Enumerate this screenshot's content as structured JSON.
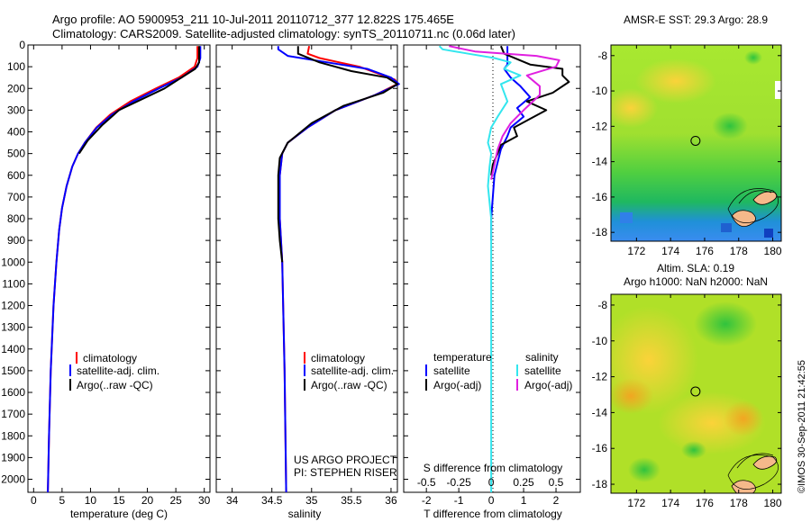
{
  "header": {
    "line1": "Argo profile: AO 5900953_211 10-Jul-2011 20110712_377 12.822S 175.465E",
    "line2": "Climatology: CARS2009. Satellite-adjusted climatology: synTS_20110711.nc (0.06d later)"
  },
  "colors": {
    "climatology": "#ff0000",
    "satellite": "#0000ff",
    "argo": "#000000",
    "salinity_satellite": "#33e6ee",
    "salinity_argo": "#e020e0",
    "land": "#f5b98a"
  },
  "chart_data": [
    {
      "type": "line",
      "xlabel": "temperature (deg C)",
      "xlim": [
        -1,
        31
      ],
      "ylim": [
        2060,
        0
      ],
      "xticks": [
        0,
        5,
        10,
        15,
        20,
        25,
        30
      ],
      "yticks": [
        0,
        100,
        200,
        300,
        400,
        500,
        600,
        700,
        800,
        900,
        1000,
        1100,
        1200,
        1300,
        1400,
        1500,
        1600,
        1700,
        1800,
        1900,
        2000
      ],
      "legend": [
        "climatology",
        "satellite-adj. clim.",
        "Argo(..raw -QC)"
      ],
      "series": [
        {
          "name": "climatology",
          "color": "#ff0000",
          "points": [
            [
              28.8,
              5
            ],
            [
              28.8,
              60
            ],
            [
              28.3,
              100
            ],
            [
              25.5,
              150
            ],
            [
              21.5,
              200
            ],
            [
              17,
              260
            ],
            [
              13.5,
              320
            ],
            [
              11,
              380
            ],
            [
              9,
              450
            ],
            [
              7.8,
              500
            ],
            [
              6.8,
              560
            ],
            [
              5.8,
              650
            ],
            [
              5,
              750
            ],
            [
              4.5,
              850
            ],
            [
              4,
              1000
            ],
            [
              3.5,
              1200
            ],
            [
              3,
              1500
            ],
            [
              2.7,
              1800
            ],
            [
              2.5,
              2060
            ]
          ]
        },
        {
          "name": "satellite-adj. clim.",
          "color": "#0000ff",
          "points": [
            [
              29.3,
              5
            ],
            [
              29.3,
              60
            ],
            [
              28.8,
              100
            ],
            [
              26,
              150
            ],
            [
              22,
              200
            ],
            [
              17.5,
              260
            ],
            [
              13.8,
              320
            ],
            [
              11.1,
              380
            ],
            [
              9,
              450
            ],
            [
              7.8,
              500
            ],
            [
              6.8,
              560
            ],
            [
              5.8,
              650
            ],
            [
              5,
              750
            ],
            [
              4.5,
              850
            ],
            [
              4,
              1000
            ],
            [
              3.5,
              1200
            ],
            [
              3,
              1500
            ],
            [
              2.7,
              1800
            ],
            [
              2.5,
              2060
            ]
          ]
        },
        {
          "name": "Argo(..raw -QC)",
          "color": "#000000",
          "points": [
            [
              29.1,
              5
            ],
            [
              29.1,
              80
            ],
            [
              28.4,
              110
            ],
            [
              26,
              150
            ],
            [
              23,
              200
            ],
            [
              19,
              250
            ],
            [
              15,
              300
            ],
            [
              12,
              370
            ],
            [
              9.5,
              440
            ],
            [
              8,
              500
            ]
          ]
        }
      ]
    },
    {
      "type": "line",
      "xlabel": "salinity",
      "xlim": [
        33.8,
        36.08
      ],
      "ylim": [
        2060,
        0
      ],
      "xticks": [
        34,
        34.5,
        35,
        35.5,
        36
      ],
      "legend": [
        "climatology",
        "satellite-adj. clim.",
        "Argo(..raw -QC)"
      ],
      "annotation": [
        "US ARGO PROJECT",
        "PI: STEPHEN RISER"
      ],
      "series": [
        {
          "name": "climatology",
          "color": "#ff0000",
          "points": [
            [
              34.97,
              5
            ],
            [
              34.95,
              40
            ],
            [
              35.1,
              60
            ],
            [
              35.6,
              100
            ],
            [
              36.05,
              160
            ],
            [
              36.08,
              180
            ],
            [
              35.8,
              230
            ],
            [
              35.3,
              300
            ],
            [
              34.95,
              380
            ],
            [
              34.7,
              450
            ],
            [
              34.63,
              500
            ],
            [
              34.6,
              600
            ],
            [
              34.6,
              800
            ],
            [
              34.63,
              1000
            ],
            [
              34.66,
              1500
            ],
            [
              34.68,
              2060
            ]
          ]
        },
        {
          "name": "satellite-adj. clim.",
          "color": "#0000ff",
          "points": [
            [
              34.58,
              5
            ],
            [
              34.58,
              20
            ],
            [
              34.7,
              50
            ],
            [
              35.2,
              80
            ],
            [
              35.7,
              110
            ],
            [
              36,
              150
            ],
            [
              36.1,
              180
            ],
            [
              35.8,
              230
            ],
            [
              35.3,
              300
            ],
            [
              34.95,
              380
            ],
            [
              34.7,
              450
            ],
            [
              34.63,
              500
            ],
            [
              34.6,
              600
            ],
            [
              34.6,
              800
            ],
            [
              34.63,
              1000
            ],
            [
              34.66,
              1500
            ],
            [
              34.68,
              2060
            ]
          ]
        },
        {
          "name": "Argo(..raw -QC)",
          "color": "#000000",
          "points": [
            [
              34.83,
              5
            ],
            [
              34.83,
              40
            ],
            [
              35.1,
              80
            ],
            [
              35.5,
              120
            ],
            [
              35.95,
              150
            ],
            [
              36.08,
              180
            ],
            [
              35.9,
              220
            ],
            [
              35.4,
              280
            ],
            [
              35,
              360
            ],
            [
              34.7,
              450
            ],
            [
              34.6,
              520
            ],
            [
              34.58,
              600
            ],
            [
              34.58,
              800
            ],
            [
              34.6,
              900
            ],
            [
              34.63,
              1000
            ]
          ]
        }
      ]
    },
    {
      "type": "line",
      "xlabel": "T difference from climatology",
      "x2label": "S difference from climatology",
      "xlim": [
        -2.7,
        2.75
      ],
      "ylim": [
        2060,
        0
      ],
      "xticks": [
        -2,
        -1,
        0,
        1,
        2
      ],
      "x2ticks": [
        -0.5,
        -0.25,
        0,
        0.25,
        0.5
      ],
      "x2tick_labels": [
        "-0.5",
        "-0.25",
        "0",
        "0.25",
        "0.5"
      ],
      "legend_titles": [
        "temperature",
        "salinity"
      ],
      "legend": [
        "satellite",
        "Argo(-adj)",
        "satellite",
        "Argo(-adj)"
      ],
      "series": [
        {
          "name": "satellite",
          "group": "temperature",
          "color": "#0000ff",
          "points": [
            [
              0.5,
              5
            ],
            [
              0.5,
              50
            ],
            [
              0.5,
              90
            ],
            [
              0.4,
              110
            ],
            [
              0.6,
              150
            ],
            [
              0.9,
              190
            ],
            [
              1.2,
              240
            ],
            [
              0.8,
              290
            ],
            [
              1,
              330
            ],
            [
              0.6,
              380
            ],
            [
              0.5,
              420
            ],
            [
              0.3,
              480
            ],
            [
              0.2,
              540
            ],
            [
              0.1,
              600
            ],
            [
              0.05,
              700
            ],
            [
              0,
              800
            ],
            [
              0,
              900
            ]
          ]
        },
        {
          "name": "Argo(-adj)",
          "group": "temperature",
          "color": "#000000",
          "points": [
            [
              0.3,
              5
            ],
            [
              0.4,
              40
            ],
            [
              1.2,
              90
            ],
            [
              2.2,
              110
            ],
            [
              2.2,
              140
            ],
            [
              2.4,
              170
            ],
            [
              1.9,
              220
            ],
            [
              1.1,
              260
            ],
            [
              1.7,
              300
            ],
            [
              1.2,
              340
            ],
            [
              0.7,
              380
            ],
            [
              0.8,
              420
            ],
            [
              0.3,
              460
            ],
            [
              0.2,
              500
            ],
            [
              0.05,
              550
            ],
            [
              0,
              600
            ]
          ]
        },
        {
          "name": "satellite",
          "group": "salinity",
          "color": "#33e6ee",
          "points": [
            [
              -1.6,
              5
            ],
            [
              -1.5,
              20
            ],
            [
              -0.7,
              40
            ],
            [
              0.1,
              60
            ],
            [
              0.6,
              80
            ],
            [
              0.4,
              110
            ],
            [
              0.9,
              140
            ],
            [
              0.3,
              180
            ],
            [
              0.5,
              260
            ],
            [
              0.2,
              330
            ],
            [
              0,
              380
            ],
            [
              -0.1,
              450
            ],
            [
              0,
              500
            ],
            [
              -0.05,
              560
            ],
            [
              -0.1,
              650
            ],
            [
              0,
              800
            ],
            [
              0,
              1000
            ],
            [
              0,
              1200
            ],
            [
              0,
              1500
            ],
            [
              0,
              2060
            ]
          ]
        },
        {
          "name": "Argo(-adj)",
          "group": "salinity",
          "color": "#e020e0",
          "points": [
            [
              -1.3,
              5
            ],
            [
              -0.5,
              30
            ],
            [
              1.4,
              50
            ],
            [
              2.1,
              70
            ],
            [
              2,
              100
            ],
            [
              1.1,
              140
            ],
            [
              1.5,
              190
            ],
            [
              1.5,
              230
            ],
            [
              1,
              300
            ],
            [
              0.6,
              360
            ],
            [
              0.35,
              420
            ],
            [
              0.2,
              480
            ],
            [
              0.1,
              550
            ],
            [
              0,
              620
            ]
          ]
        }
      ]
    },
    {
      "type": "heatmap",
      "title": "AMSR-E SST: 29.3 Argo: 28.9",
      "xlim": [
        170.5,
        180.5
      ],
      "ylim": [
        -18.5,
        -7.4
      ],
      "xticks": [
        172,
        174,
        176,
        178,
        180
      ],
      "yticks": [
        -8,
        -10,
        -12,
        -14,
        -16,
        -18
      ],
      "marker": {
        "lon": 175.465,
        "lat": -12.822
      }
    },
    {
      "type": "heatmap",
      "title": [
        "Altim. SLA: 0.19",
        "Argo h1000: NaN h2000: NaN"
      ],
      "xlim": [
        170.5,
        180.5
      ],
      "ylim": [
        -18.5,
        -7.4
      ],
      "xticks": [
        172,
        174,
        176,
        178,
        180
      ],
      "yticks": [
        -8,
        -10,
        -12,
        -14,
        -16,
        -18
      ],
      "marker": {
        "lon": 175.465,
        "lat": -12.822
      }
    }
  ],
  "timestamp": "©IMOS 30-Sep-2011 21:42:55"
}
